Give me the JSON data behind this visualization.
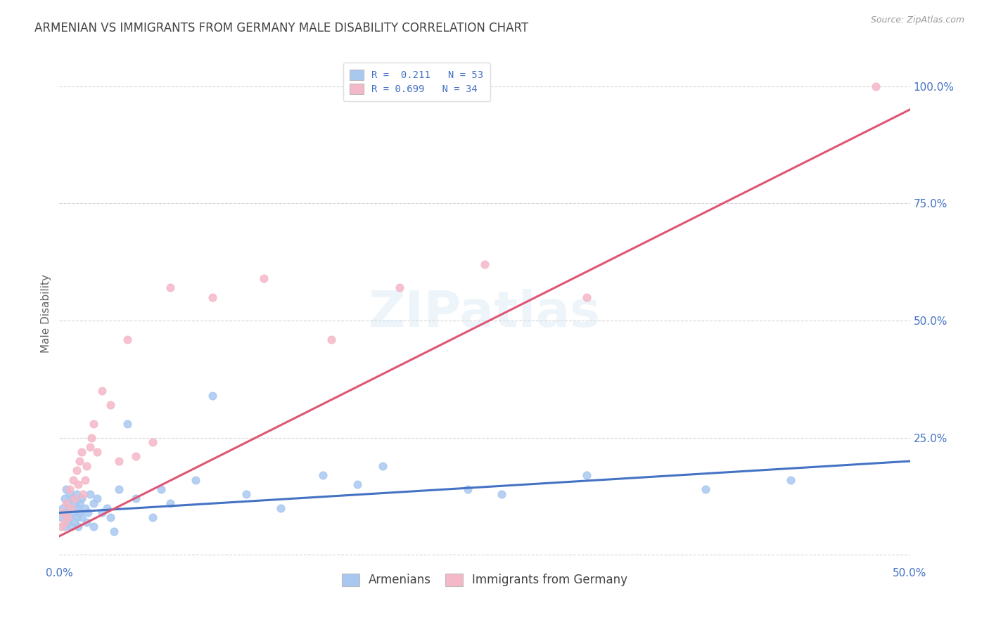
{
  "title": "ARMENIAN VS IMMIGRANTS FROM GERMANY MALE DISABILITY CORRELATION CHART",
  "source": "Source: ZipAtlas.com",
  "ylabel": "Male Disability",
  "xlim": [
    0.0,
    0.5
  ],
  "ylim": [
    -0.02,
    1.05
  ],
  "legend_R1": "0.211",
  "legend_N1": "53",
  "legend_R2": "0.699",
  "legend_N2": "34",
  "blue_scatter_color": "#a8c8f0",
  "pink_scatter_color": "#f5b8c8",
  "blue_line_color": "#4472c4",
  "pink_line_color": "#e05575",
  "tick_color": "#4472c4",
  "background_color": "#ffffff",
  "grid_color": "#cccccc",
  "title_color": "#444444",
  "armenians_x": [
    0.001,
    0.002,
    0.003,
    0.003,
    0.004,
    0.004,
    0.005,
    0.005,
    0.006,
    0.006,
    0.007,
    0.007,
    0.008,
    0.008,
    0.009,
    0.009,
    0.01,
    0.01,
    0.011,
    0.011,
    0.012,
    0.012,
    0.013,
    0.013,
    0.015,
    0.016,
    0.017,
    0.018,
    0.02,
    0.02,
    0.022,
    0.025,
    0.028,
    0.03,
    0.032,
    0.035,
    0.04,
    0.045,
    0.055,
    0.06,
    0.065,
    0.08,
    0.09,
    0.11,
    0.13,
    0.155,
    0.175,
    0.19,
    0.24,
    0.26,
    0.31,
    0.38,
    0.43
  ],
  "armenians_y": [
    0.08,
    0.1,
    0.06,
    0.12,
    0.09,
    0.14,
    0.07,
    0.11,
    0.08,
    0.13,
    0.06,
    0.1,
    0.09,
    0.12,
    0.07,
    0.11,
    0.08,
    0.13,
    0.1,
    0.06,
    0.09,
    0.11,
    0.08,
    0.12,
    0.1,
    0.07,
    0.09,
    0.13,
    0.06,
    0.11,
    0.12,
    0.09,
    0.1,
    0.08,
    0.05,
    0.14,
    0.28,
    0.12,
    0.08,
    0.14,
    0.11,
    0.16,
    0.34,
    0.13,
    0.1,
    0.17,
    0.15,
    0.19,
    0.14,
    0.13,
    0.17,
    0.14,
    0.16
  ],
  "germany_x": [
    0.001,
    0.002,
    0.003,
    0.004,
    0.005,
    0.006,
    0.007,
    0.008,
    0.009,
    0.01,
    0.011,
    0.012,
    0.013,
    0.014,
    0.015,
    0.016,
    0.018,
    0.019,
    0.02,
    0.022,
    0.025,
    0.03,
    0.035,
    0.04,
    0.045,
    0.055,
    0.065,
    0.09,
    0.12,
    0.16,
    0.2,
    0.25,
    0.31,
    0.48
  ],
  "germany_y": [
    0.06,
    0.09,
    0.07,
    0.11,
    0.08,
    0.14,
    0.1,
    0.16,
    0.12,
    0.18,
    0.15,
    0.2,
    0.22,
    0.13,
    0.16,
    0.19,
    0.23,
    0.25,
    0.28,
    0.22,
    0.35,
    0.32,
    0.2,
    0.46,
    0.21,
    0.24,
    0.57,
    0.55,
    0.59,
    0.46,
    0.57,
    0.62,
    0.55,
    1.0
  ],
  "blue_line_x0": 0.0,
  "blue_line_x1": 0.5,
  "blue_line_y0": 0.09,
  "blue_line_y1": 0.2,
  "pink_line_x0": 0.0,
  "pink_line_x1": 0.5,
  "pink_line_y0": 0.04,
  "pink_line_y1": 0.95
}
